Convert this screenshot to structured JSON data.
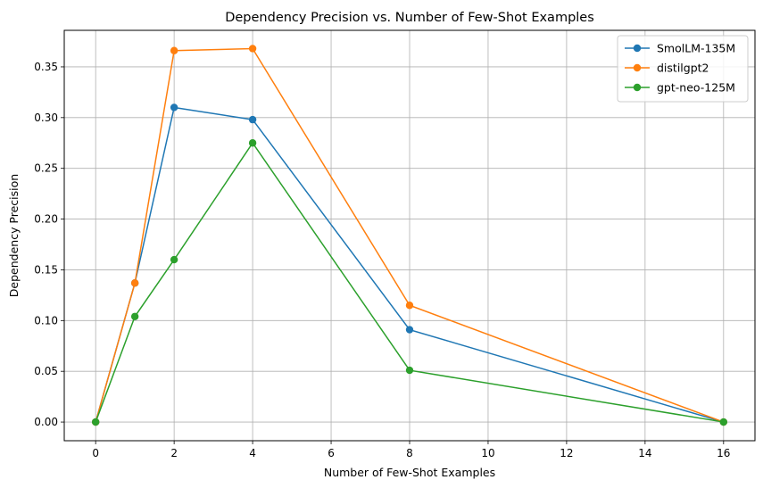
{
  "chart_data": {
    "type": "line",
    "title": "Dependency Precision vs. Number of Few-Shot Examples",
    "xlabel": "Number of Few-Shot Examples",
    "ylabel": "Dependency Precision",
    "x": [
      0,
      1,
      2,
      4,
      8,
      16
    ],
    "xlim": [
      -0.8,
      16.8
    ],
    "ylim": [
      -0.0184,
      0.386
    ],
    "xticks": [
      0,
      2,
      4,
      6,
      8,
      10,
      12,
      14,
      16
    ],
    "yticks": [
      0.0,
      0.05,
      0.1,
      0.15,
      0.2,
      0.25,
      0.3,
      0.35
    ],
    "xtick_labels": [
      "0",
      "2",
      "4",
      "6",
      "8",
      "10",
      "12",
      "14",
      "16"
    ],
    "ytick_labels": [
      "0.00",
      "0.05",
      "0.10",
      "0.15",
      "0.20",
      "0.25",
      "0.30",
      "0.35"
    ],
    "grid": true,
    "legend_position": "top-right",
    "series": [
      {
        "name": "SmolLM-135M",
        "color": "#1f77b4",
        "values": [
          0.0,
          0.137,
          0.31,
          0.298,
          0.091,
          0.0
        ]
      },
      {
        "name": "distilgpt2",
        "color": "#ff7f0e",
        "values": [
          0.0,
          0.137,
          0.366,
          0.368,
          0.115,
          0.0
        ]
      },
      {
        "name": "gpt-neo-125M",
        "color": "#2ca02c",
        "values": [
          0.0,
          0.104,
          0.16,
          0.275,
          0.051,
          0.0
        ]
      }
    ]
  }
}
